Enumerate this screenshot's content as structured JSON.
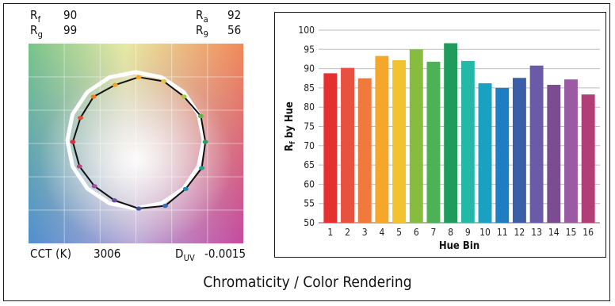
{
  "metrics": {
    "rf": {
      "label": "R",
      "sub": "f",
      "value": "90"
    },
    "rg_left": {
      "label": "R",
      "sub": "g",
      "value": "99"
    },
    "ra": {
      "label": "R",
      "sub": "a",
      "value": "92"
    },
    "rg_right": {
      "label": "R",
      "sub": "9",
      "value": "56"
    },
    "cct": {
      "label": "CCT (K)",
      "value": "3006"
    },
    "duv": {
      "label": "D",
      "sub": "UV",
      "value": "-0.0015"
    }
  },
  "caption": "Chromaticity / Color Rendering",
  "colors": {
    "bar_colors": [
      "#e53030",
      "#e85040",
      "#f07a3c",
      "#f6a62a",
      "#f2c230",
      "#86bd3e",
      "#4db255",
      "#1f9c5a",
      "#23b8a8",
      "#1aa0c0",
      "#1f7dc2",
      "#3a5ea8",
      "#6b5aa8",
      "#7b4c8f",
      "#9a5ba4",
      "#b23e78"
    ],
    "cie_ring_points": [
      "#f3a51f",
      "#e8c13a",
      "#a6c73c",
      "#5fb14c",
      "#2fa064",
      "#239f8e",
      "#1a8bb8",
      "#2f6db8",
      "#3e4fa7",
      "#6b4ea3",
      "#9a4fa3",
      "#b0457f",
      "#d9313b",
      "#e54a32",
      "#f07a24",
      "#f2a327"
    ]
  },
  "chart_data": {
    "type": "bar",
    "title": "",
    "xlabel": "Hue Bin",
    "ylabel": "Rf by Hue",
    "ylabel_main": "R",
    "ylabel_sub": "f",
    "ylabel_rest": "by Hue",
    "categories": [
      "1",
      "2",
      "3",
      "4",
      "5",
      "6",
      "7",
      "8",
      "9",
      "10",
      "11",
      "12",
      "13",
      "14",
      "15",
      "16"
    ],
    "values": [
      88.8,
      90.2,
      87.5,
      93.3,
      92.2,
      95.0,
      91.8,
      96.6,
      92.0,
      86.2,
      85.0,
      87.6,
      90.8,
      85.8,
      87.2,
      83.3
    ],
    "ylim": [
      50,
      100
    ],
    "yticks": [
      50,
      55,
      60,
      65,
      70,
      75,
      80,
      85,
      90,
      95,
      100
    ],
    "grid": true
  }
}
